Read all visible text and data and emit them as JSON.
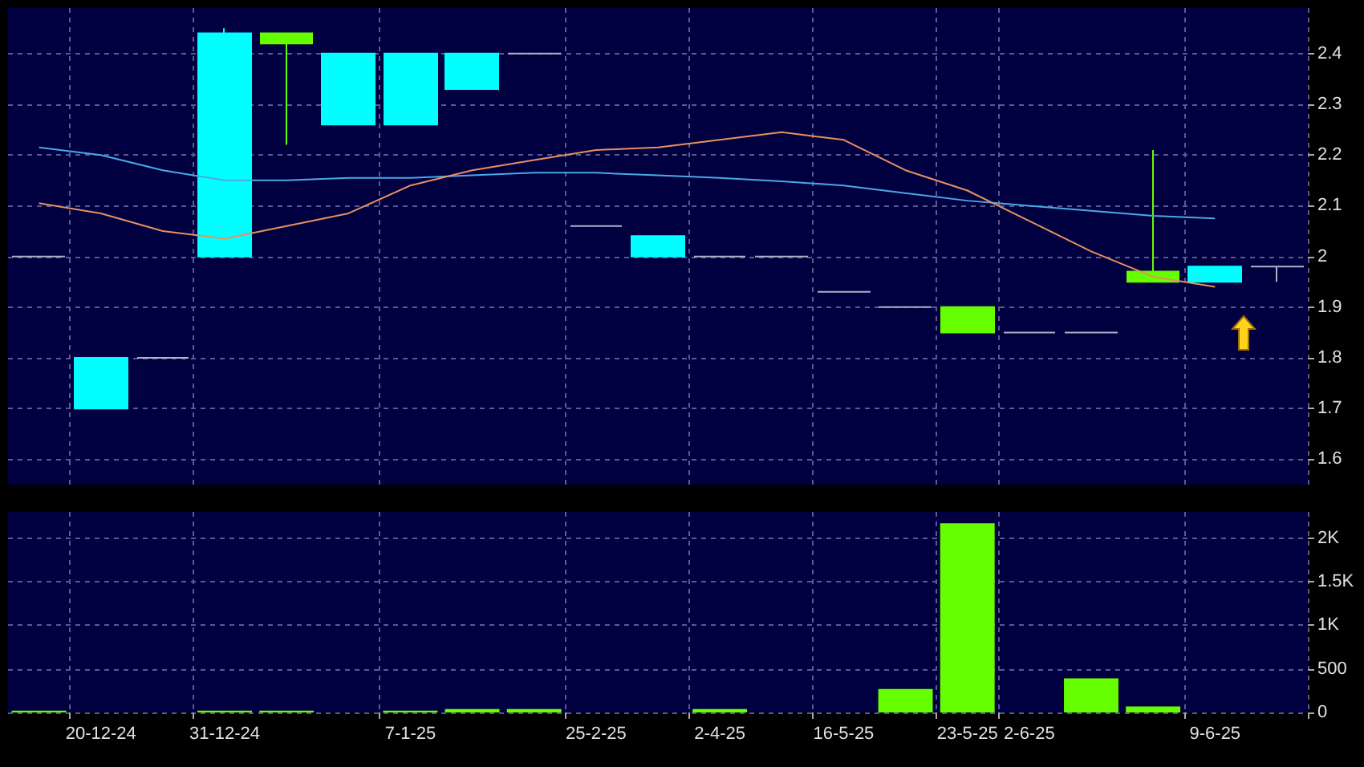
{
  "chart_data": [
    {
      "type": "candlestick",
      "categories": [
        null,
        null,
        null,
        null,
        null,
        null,
        null,
        null,
        null,
        null,
        null,
        null,
        null,
        null,
        null,
        null,
        null,
        null,
        null,
        null,
        null
      ],
      "ohlc": [
        [
          2.0,
          2.0,
          2.0,
          2.0
        ],
        [
          1.7,
          1.8,
          1.7,
          1.8
        ],
        [
          1.8,
          1.8,
          1.8,
          1.8
        ],
        [
          2.0,
          2.45,
          2.0,
          2.44
        ],
        [
          2.44,
          2.44,
          2.22,
          2.42
        ],
        [
          2.26,
          2.4,
          2.26,
          2.4
        ],
        [
          2.26,
          2.4,
          2.26,
          2.4
        ],
        [
          2.33,
          2.4,
          2.33,
          2.4
        ],
        [
          2.4,
          2.4,
          2.4,
          2.4
        ],
        [
          2.06,
          2.06,
          2.06,
          2.06
        ],
        [
          2.0,
          2.04,
          2.0,
          2.04
        ],
        [
          2.0,
          2.0,
          2.0,
          2.0
        ],
        [
          2.0,
          2.0,
          2.0,
          2.0
        ],
        [
          1.93,
          1.93,
          1.93,
          1.93
        ],
        [
          1.9,
          1.9,
          1.9,
          1.9
        ],
        [
          1.9,
          1.9,
          1.85,
          1.85
        ],
        [
          1.85,
          1.85,
          1.85,
          1.85
        ],
        [
          1.85,
          1.85,
          1.85,
          1.85
        ],
        [
          1.97,
          2.21,
          1.95,
          1.95
        ],
        [
          1.95,
          1.98,
          1.95,
          1.98
        ],
        [
          1.98,
          1.98,
          1.95,
          1.98
        ]
      ],
      "colors": [
        "#b0b0c8",
        "#00ffff",
        "#b0b0c8",
        "#00ffff",
        "#66ff00",
        "#00ffff",
        "#00ffff",
        "#00ffff",
        "#b0b0c8",
        "#b0b0c8",
        "#00ffff",
        "#b0b0c8",
        "#b0b0c8",
        "#b0b0c8",
        "#b0b0c8",
        "#66ff00",
        "#b0b0c8",
        "#b0b0c8",
        "#66ff00",
        "#00ffff",
        "#b0b0c8"
      ],
      "series": [
        {
          "type": "line",
          "color": "#4aa8e8",
          "values": [
            2.215,
            2.2,
            2.17,
            2.15,
            2.15,
            2.155,
            2.155,
            2.16,
            2.165,
            2.165,
            2.16,
            2.155,
            2.148,
            2.14,
            2.125,
            2.11,
            2.1,
            2.09,
            2.08,
            2.075,
            null
          ]
        },
        {
          "type": "line",
          "color": "#e89060",
          "values": [
            2.105,
            2.085,
            2.05,
            2.035,
            2.06,
            2.085,
            2.14,
            2.17,
            2.19,
            2.21,
            2.215,
            2.23,
            2.245,
            2.23,
            2.17,
            2.13,
            2.07,
            2.01,
            1.96,
            1.94,
            null
          ]
        }
      ],
      "ylim": [
        1.55,
        2.49
      ],
      "yticks": [
        1.6,
        1.7,
        1.8,
        1.9,
        2,
        2.1,
        2.2,
        2.3,
        2.4
      ],
      "grid": true
    },
    {
      "type": "bar",
      "categories": [
        null,
        "20-12-24",
        null,
        "31-12-24",
        null,
        null,
        "7-1-25",
        null,
        null,
        "25-2-25",
        null,
        "2-4-25",
        null,
        "16-5-25",
        null,
        "23-5-25",
        "2-6-25",
        null,
        null,
        "9-6-25",
        null
      ],
      "values": [
        20,
        0,
        0,
        20,
        20,
        0,
        20,
        40,
        40,
        0,
        0,
        40,
        0,
        0,
        270,
        2170,
        0,
        390,
        70,
        0,
        0
      ],
      "color": "#66ff00",
      "ylim": [
        0,
        2300
      ],
      "yticks": [
        0,
        500,
        {
          "value": 1000,
          "label": "1K"
        },
        {
          "value": 1500,
          "label": "1.5K"
        },
        {
          "value": 2000,
          "label": "2K"
        }
      ],
      "grid": true
    }
  ]
}
